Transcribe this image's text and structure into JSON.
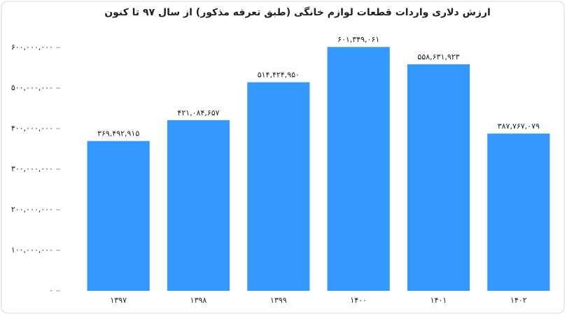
{
  "chart_data": {
    "type": "bar",
    "title": "ارزش دلاری واردات قطعات لوازم خانگی (طبق تعرفه مذکور) از سال ۹۷ تا کنون",
    "categories": [
      "۱۳۹۷",
      "۱۳۹۸",
      "۱۳۹۹",
      "۱۴۰۰",
      "۱۴۰۱",
      "۱۴۰۲"
    ],
    "values": [
      369492915,
      421084657,
      514424950,
      601349061,
      558631923,
      387767079
    ],
    "value_labels": [
      "۳۶۹,۴۹۲,۹۱۵",
      "۴۲۱,۰۸۴,۶۵۷",
      "۵۱۴,۴۲۴,۹۵۰",
      "۶۰۱,۳۴۹,۰۶۱",
      "۵۵۸,۶۳۱,۹۲۳",
      "۳۸۷,۷۶۷,۰۷۹"
    ],
    "color": "#3399ff",
    "ylim": [
      0,
      650000000
    ],
    "yticks": [
      {
        "value": 0,
        "label": "۰"
      },
      {
        "value": 100000000,
        "label": "۱۰۰,۰۰۰,۰۰۰"
      },
      {
        "value": 200000000,
        "label": "۲۰۰,۰۰۰,۰۰۰"
      },
      {
        "value": 300000000,
        "label": "۳۰۰,۰۰۰,۰۰۰"
      },
      {
        "value": 400000000,
        "label": "۴۰۰,۰۰۰,۰۰۰"
      },
      {
        "value": 500000000,
        "label": "۵۰۰,۰۰۰,۰۰۰"
      },
      {
        "value": 600000000,
        "label": "۶۰۰,۰۰۰,۰۰۰"
      }
    ],
    "grid": false
  }
}
